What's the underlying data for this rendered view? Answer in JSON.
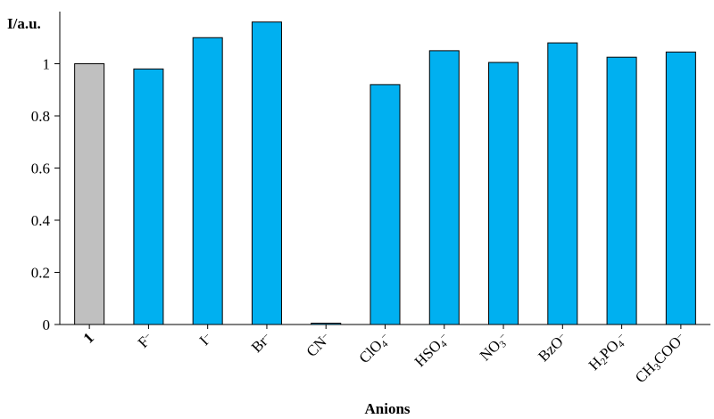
{
  "chart_data": {
    "type": "bar",
    "ylabel": "I/a.u.",
    "xlabel": "Anions",
    "ylim": [
      0,
      1.2
    ],
    "yticks": [
      "0",
      "0.2",
      "0.4",
      "0.6",
      "0.8",
      "1"
    ],
    "ytick_values": [
      0,
      0.2,
      0.4,
      0.6,
      0.8,
      1
    ],
    "grid": false,
    "categories": [
      {
        "label": [
          {
            "t": "1",
            "bold": true
          }
        ]
      },
      {
        "label": [
          {
            "t": "F"
          },
          {
            "t": "−",
            "sup": true
          }
        ]
      },
      {
        "label": [
          {
            "t": "I"
          },
          {
            "t": "−",
            "sup": true
          }
        ]
      },
      {
        "label": [
          {
            "t": "Br"
          },
          {
            "t": "−",
            "sup": true
          }
        ]
      },
      {
        "label": [
          {
            "t": "CN"
          },
          {
            "t": "−",
            "sup": true
          }
        ]
      },
      {
        "label": [
          {
            "t": "ClO"
          },
          {
            "t": "4",
            "sub": true
          },
          {
            "t": "−",
            "sup": true
          }
        ]
      },
      {
        "label": [
          {
            "t": "HSO"
          },
          {
            "t": "4",
            "sub": true
          },
          {
            "t": "−",
            "sup": true
          }
        ]
      },
      {
        "label": [
          {
            "t": "NO"
          },
          {
            "t": "3",
            "sub": true
          },
          {
            "t": "−",
            "sup": true
          }
        ]
      },
      {
        "label": [
          {
            "t": "BzO"
          },
          {
            "t": "−",
            "sup": true
          }
        ]
      },
      {
        "label": [
          {
            "t": "H"
          },
          {
            "t": "2",
            "sub": true
          },
          {
            "t": "PO"
          },
          {
            "t": "4",
            "sub": true
          },
          {
            "t": "−",
            "sup": true
          }
        ]
      },
      {
        "label": [
          {
            "t": "CH"
          },
          {
            "t": "3",
            "sub": true
          },
          {
            "t": "COO"
          },
          {
            "t": "−",
            "sup": true
          }
        ]
      }
    ],
    "values": [
      1.0,
      0.98,
      1.1,
      1.16,
      0.005,
      0.92,
      1.05,
      1.005,
      1.08,
      1.025,
      1.045
    ],
    "colors": [
      "#c0c0c0",
      "#00b0f0",
      "#00b0f0",
      "#00b0f0",
      "#00b0f0",
      "#00b0f0",
      "#00b0f0",
      "#00b0f0",
      "#00b0f0",
      "#00b0f0",
      "#00b0f0"
    ]
  }
}
